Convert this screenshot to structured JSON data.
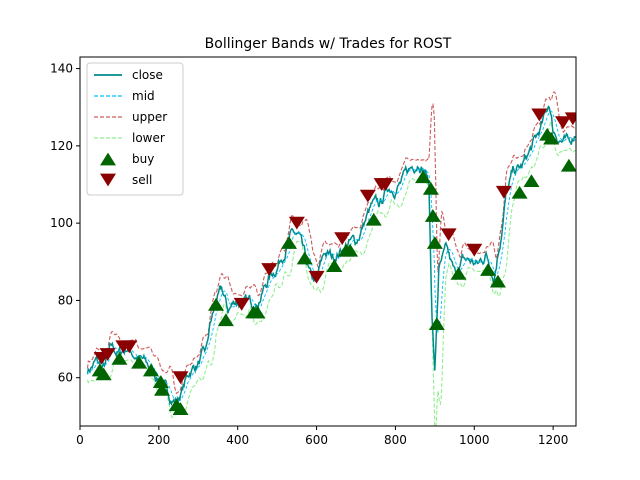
{
  "chart_data": {
    "type": "line",
    "title": "Bollinger Bands w/ Trades for ROST",
    "xlabel": "",
    "ylabel": "",
    "xlim": [
      0,
      1258
    ],
    "ylim": [
      47.5,
      143
    ],
    "x_ticks": [
      0,
      200,
      400,
      600,
      800,
      1000,
      1200
    ],
    "y_ticks": [
      60,
      80,
      100,
      120,
      140
    ],
    "grid": false,
    "legend_position": "top-left",
    "colors": {
      "close": "#008b8b",
      "mid": "#00bfff",
      "upper": "#cd5c5c",
      "lower": "#90ee90",
      "buy": "#006400",
      "sell": "#8b0000"
    },
    "legend": [
      {
        "label": "close",
        "kind": "line"
      },
      {
        "label": "mid",
        "kind": "dashed-line"
      },
      {
        "label": "upper",
        "kind": "dashed-line"
      },
      {
        "label": "lower",
        "kind": "dashed-line"
      },
      {
        "label": "buy",
        "kind": "up-triangle"
      },
      {
        "label": "sell",
        "kind": "down-triangle"
      }
    ],
    "series_keypoints": {
      "close": [
        [
          19,
          62
        ],
        [
          40,
          64
        ],
        [
          60,
          62
        ],
        [
          80,
          67
        ],
        [
          100,
          66
        ],
        [
          120,
          68
        ],
        [
          140,
          66
        ],
        [
          160,
          64
        ],
        [
          180,
          62
        ],
        [
          200,
          60
        ],
        [
          220,
          56
        ],
        [
          245,
          54
        ],
        [
          260,
          57
        ],
        [
          280,
          62
        ],
        [
          300,
          64
        ],
        [
          320,
          66
        ],
        [
          330,
          73
        ],
        [
          345,
          79
        ],
        [
          360,
          82
        ],
        [
          375,
          77
        ],
        [
          395,
          80
        ],
        [
          420,
          79
        ],
        [
          440,
          79
        ],
        [
          460,
          82
        ],
        [
          480,
          86
        ],
        [
          500,
          89
        ],
        [
          520,
          94
        ],
        [
          540,
          97
        ],
        [
          555,
          96
        ],
        [
          565,
          92
        ],
        [
          585,
          85
        ],
        [
          600,
          84
        ],
        [
          620,
          92
        ],
        [
          640,
          91
        ],
        [
          660,
          93
        ],
        [
          680,
          95
        ],
        [
          700,
          95
        ],
        [
          720,
          100
        ],
        [
          740,
          104
        ],
        [
          760,
          104
        ],
        [
          780,
          109
        ],
        [
          800,
          110
        ],
        [
          820,
          111
        ],
        [
          840,
          114
        ],
        [
          860,
          117
        ],
        [
          875,
          114
        ],
        [
          885,
          110
        ],
        [
          893,
          76
        ],
        [
          900,
          61
        ],
        [
          910,
          88
        ],
        [
          930,
          92
        ],
        [
          950,
          86
        ],
        [
          970,
          90
        ],
        [
          990,
          90
        ],
        [
          1010,
          89
        ],
        [
          1030,
          92
        ],
        [
          1050,
          87
        ],
        [
          1065,
          96
        ],
        [
          1080,
          107
        ],
        [
          1100,
          113
        ],
        [
          1120,
          114
        ],
        [
          1140,
          118
        ],
        [
          1160,
          122
        ],
        [
          1180,
          127
        ],
        [
          1190,
          131
        ],
        [
          1200,
          124
        ],
        [
          1220,
          122
        ],
        [
          1240,
          120
        ],
        [
          1258,
          124
        ]
      ],
      "upper_offset": 4.5,
      "lower_offset": 4.5
    },
    "buy": [
      [
        50,
        62
      ],
      [
        60,
        61
      ],
      [
        100,
        65
      ],
      [
        150,
        64
      ],
      [
        180,
        62
      ],
      [
        205,
        59
      ],
      [
        208,
        57
      ],
      [
        245,
        53
      ],
      [
        255,
        52
      ],
      [
        345,
        79
      ],
      [
        370,
        75
      ],
      [
        440,
        77
      ],
      [
        450,
        77
      ],
      [
        530,
        95
      ],
      [
        570,
        91
      ],
      [
        645,
        89
      ],
      [
        675,
        93
      ],
      [
        685,
        93
      ],
      [
        745,
        101
      ],
      [
        870,
        112
      ],
      [
        890,
        109
      ],
      [
        895,
        102
      ],
      [
        900,
        95
      ],
      [
        905,
        74
      ],
      [
        960,
        87
      ],
      [
        1035,
        88
      ],
      [
        1060,
        85
      ],
      [
        1115,
        108
      ],
      [
        1145,
        111
      ],
      [
        1185,
        123
      ],
      [
        1195,
        122
      ],
      [
        1240,
        115
      ]
    ],
    "sell": [
      [
        55,
        65
      ],
      [
        70,
        66
      ],
      [
        110,
        68
      ],
      [
        125,
        68
      ],
      [
        255,
        60
      ],
      [
        410,
        79
      ],
      [
        480,
        88
      ],
      [
        550,
        100
      ],
      [
        600,
        86
      ],
      [
        665,
        96
      ],
      [
        730,
        107
      ],
      [
        765,
        110
      ],
      [
        775,
        110
      ],
      [
        935,
        97
      ],
      [
        1000,
        93
      ],
      [
        1075,
        108
      ],
      [
        1165,
        128
      ],
      [
        1225,
        126
      ],
      [
        1250,
        127
      ]
    ]
  }
}
